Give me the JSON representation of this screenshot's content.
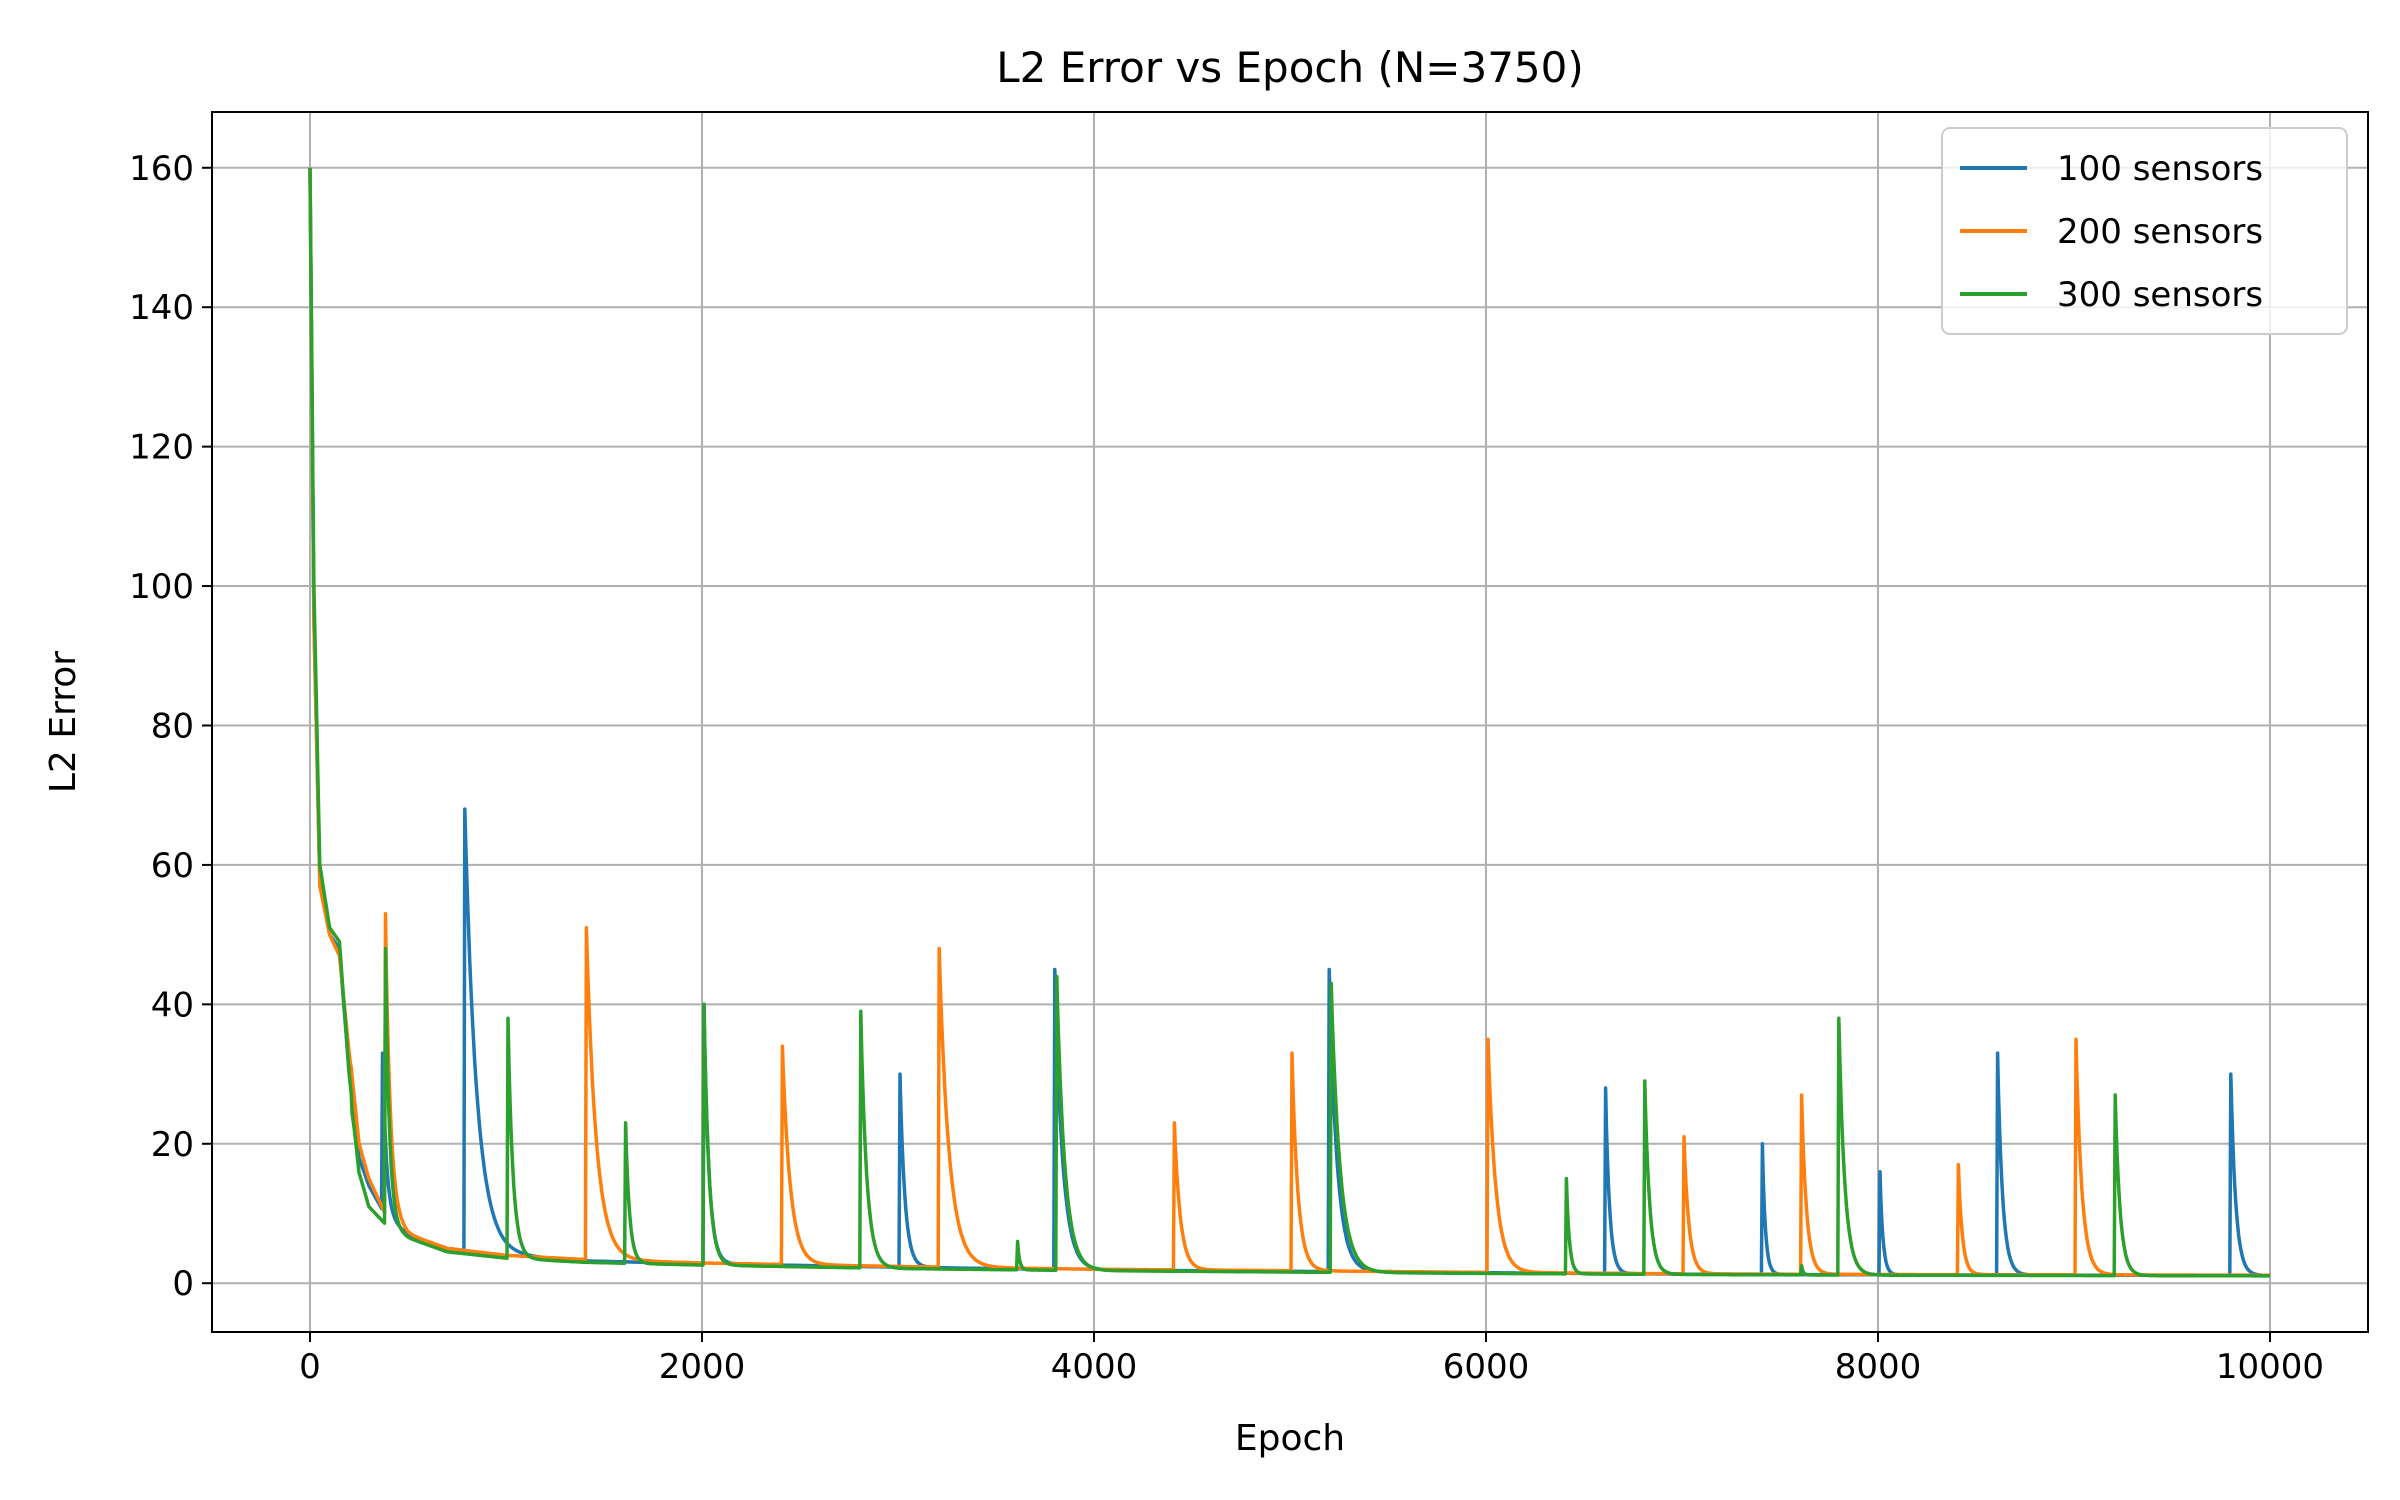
{
  "chart_data": {
    "type": "line",
    "title": "L2 Error vs Epoch (N=3750)",
    "xlabel": "Epoch",
    "ylabel": "L2 Error",
    "xlim": [
      -500,
      10500
    ],
    "ylim": [
      -7,
      168
    ],
    "xticks": [
      0,
      2000,
      4000,
      6000,
      8000,
      10000
    ],
    "yticks": [
      0,
      20,
      40,
      60,
      80,
      100,
      120,
      140,
      160
    ],
    "grid": true,
    "legend_position": "upper right",
    "series": [
      {
        "name": "100 sensors",
        "color": "#1f77b4",
        "baseline": [
          [
            0,
            160
          ],
          [
            20,
            95
          ],
          [
            50,
            58
          ],
          [
            100,
            50
          ],
          [
            150,
            48
          ],
          [
            200,
            30
          ],
          [
            250,
            18
          ],
          [
            300,
            14
          ],
          [
            400,
            9
          ],
          [
            500,
            7
          ],
          [
            700,
            5
          ],
          [
            1000,
            4
          ],
          [
            1400,
            3.2
          ],
          [
            2000,
            2.8
          ],
          [
            3000,
            2.3
          ],
          [
            4000,
            1.9
          ],
          [
            5000,
            1.7
          ],
          [
            6000,
            1.5
          ],
          [
            7000,
            1.3
          ],
          [
            8000,
            1.2
          ],
          [
            9000,
            1.15
          ],
          [
            10000,
            1.1
          ]
        ],
        "spikes": [
          [
            370,
            33,
            20
          ],
          [
            790,
            68,
            60
          ],
          [
            2010,
            40,
            25
          ],
          [
            3010,
            30,
            25
          ],
          [
            3800,
            45,
            40
          ],
          [
            5200,
            45,
            40
          ],
          [
            6610,
            28,
            20
          ],
          [
            7410,
            20,
            15
          ],
          [
            8010,
            16,
            15
          ],
          [
            8610,
            33,
            25
          ],
          [
            9800,
            30,
            25
          ]
        ]
      },
      {
        "name": "200 sensors",
        "color": "#ff7f0e",
        "baseline": [
          [
            0,
            160
          ],
          [
            20,
            95
          ],
          [
            50,
            57
          ],
          [
            100,
            50
          ],
          [
            150,
            47
          ],
          [
            200,
            33
          ],
          [
            250,
            20
          ],
          [
            300,
            15
          ],
          [
            400,
            9
          ],
          [
            500,
            7
          ],
          [
            700,
            5
          ],
          [
            1000,
            4
          ],
          [
            1400,
            3.4
          ],
          [
            2000,
            2.9
          ],
          [
            3000,
            2.4
          ],
          [
            4000,
            2.0
          ],
          [
            5000,
            1.8
          ],
          [
            6000,
            1.55
          ],
          [
            7000,
            1.35
          ],
          [
            8000,
            1.25
          ],
          [
            9000,
            1.2
          ],
          [
            10000,
            1.15
          ]
        ],
        "spikes": [
          [
            210,
            31,
            25
          ],
          [
            385,
            53,
            25
          ],
          [
            1410,
            51,
            50
          ],
          [
            2410,
            34,
            40
          ],
          [
            3210,
            48,
            50
          ],
          [
            4410,
            23,
            30
          ],
          [
            5010,
            33,
            30
          ],
          [
            6010,
            35,
            40
          ],
          [
            7010,
            21,
            25
          ],
          [
            7610,
            27,
            25
          ],
          [
            8410,
            17,
            20
          ],
          [
            9010,
            35,
            30
          ]
        ]
      },
      {
        "name": "300 sensors",
        "color": "#2ca02c",
        "baseline": [
          [
            0,
            160
          ],
          [
            20,
            100
          ],
          [
            50,
            60
          ],
          [
            100,
            51
          ],
          [
            150,
            49
          ],
          [
            200,
            30
          ],
          [
            250,
            16
          ],
          [
            300,
            11
          ],
          [
            400,
            8
          ],
          [
            500,
            6.5
          ],
          [
            700,
            4.5
          ],
          [
            1000,
            3.6
          ],
          [
            1400,
            3.0
          ],
          [
            2000,
            2.6
          ],
          [
            3000,
            2.1
          ],
          [
            4000,
            1.8
          ],
          [
            5000,
            1.6
          ],
          [
            6000,
            1.4
          ],
          [
            7000,
            1.25
          ],
          [
            8000,
            1.15
          ],
          [
            9000,
            1.1
          ],
          [
            10000,
            1.05
          ]
        ],
        "spikes": [
          [
            200,
            26,
            15
          ],
          [
            385,
            48,
            20
          ],
          [
            1010,
            38,
            25
          ],
          [
            1610,
            23,
            20
          ],
          [
            2010,
            40,
            25
          ],
          [
            2810,
            39,
            30
          ],
          [
            3610,
            6,
            10
          ],
          [
            3810,
            44,
            40
          ],
          [
            5210,
            43,
            45
          ],
          [
            6410,
            15,
            15
          ],
          [
            6810,
            29,
            25
          ],
          [
            7610,
            2.5,
            8
          ],
          [
            7800,
            38,
            30
          ],
          [
            9210,
            27,
            25
          ]
        ]
      }
    ]
  }
}
